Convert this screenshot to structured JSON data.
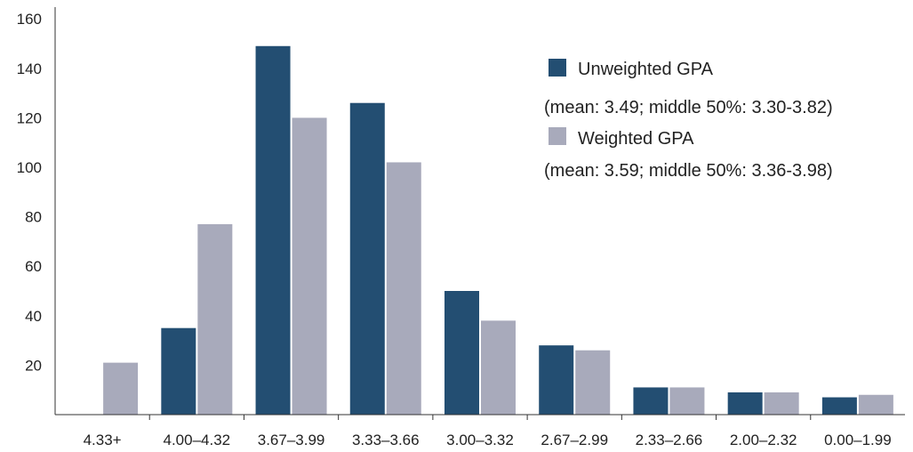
{
  "chart_data": {
    "type": "bar",
    "title": "",
    "xlabel": "",
    "ylabel": "",
    "categories": [
      "4.33+",
      "4.00–4.32",
      "3.67–3.99",
      "3.33–3.66",
      "3.00–3.32",
      "2.67–2.99",
      "2.33–2.66",
      "2.00–2.32",
      "0.00–1.99"
    ],
    "ylim": [
      0,
      160
    ],
    "yticks": [
      20,
      40,
      60,
      80,
      100,
      120,
      140,
      160
    ],
    "grid": false,
    "legend_position": "top-right",
    "series": [
      {
        "name": "Unweighted GPA",
        "note": "(mean: 3.49; middle 50%: 3.30-3.82)",
        "color": "#234e72",
        "values": [
          0,
          35,
          149,
          126,
          50,
          28,
          11,
          9,
          7
        ]
      },
      {
        "name": "Weighted GPA",
        "note": "(mean: 3.59; middle 50%: 3.36-3.98)",
        "color": "#a8aabb",
        "values": [
          21,
          77,
          120,
          102,
          38,
          26,
          11,
          9,
          8
        ]
      }
    ]
  }
}
